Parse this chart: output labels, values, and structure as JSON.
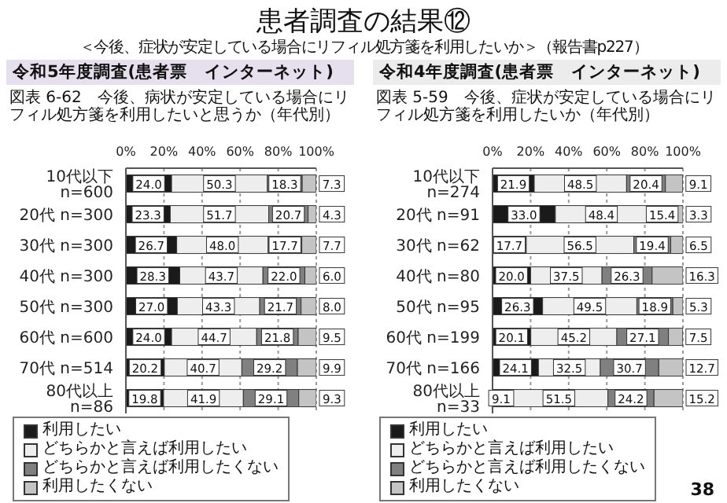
{
  "chart_data": [
    {
      "type": "bar",
      "orientation": "horizontal",
      "stacked": true,
      "title": "令和5年度調査(患者票　インターネット)",
      "subtitle": "図表 6-62　今後、病状が安定している場合にリフィル処方箋を利用したいと思うか（年代別）",
      "annotations": [
        "患者調査の結果⑫",
        "＜今後、症状が安定している場合にリフィル処方箋を利用したいか＞（報告書p227）",
        "38"
      ],
      "categories": [
        "10代以下 n=600",
        "20代 n=300",
        "30代 n=300",
        "40代 n=300",
        "50代 n=300",
        "60代 n=600",
        "70代 n=514",
        "80代以上 n=86"
      ],
      "series": [
        {
          "name": "利用したい",
          "color": "#1a1a1a",
          "values": [
            24.0,
            23.3,
            26.7,
            28.3,
            27.0,
            24.0,
            20.2,
            19.8
          ],
          "value_labels": [
            "24.0",
            "23.3",
            "26.7",
            "28.3",
            "27.0",
            "24.0",
            "20.2",
            "19.8"
          ]
        },
        {
          "name": "どちらかと言えば利用したい",
          "color": "#eeeeee",
          "values": [
            50.3,
            51.7,
            48.0,
            43.7,
            43.3,
            44.7,
            40.7,
            41.9
          ],
          "value_labels": [
            "50.3",
            "51.7",
            "48.0",
            "43.7",
            "43.3",
            "44.7",
            "40.7",
            "41.9"
          ]
        },
        {
          "name": "どちらかと言えば利用したくない",
          "color": "#808080",
          "values": [
            18.3,
            20.7,
            17.7,
            22.0,
            21.7,
            21.8,
            29.2,
            29.1
          ],
          "value_labels": [
            "18.3",
            "20.7",
            "17.7",
            "22.0",
            "21.7",
            "21.8",
            "29.2",
            "29.1"
          ]
        },
        {
          "name": "利用したくない",
          "color": "#c4c4c4",
          "values": [
            7.3,
            4.3,
            7.7,
            6.0,
            8.0,
            9.5,
            9.9,
            9.3
          ],
          "value_labels": [
            "7.3",
            "4.3",
            "7.7",
            "6.0",
            "8.0",
            "9.5",
            "9.9",
            "9.3"
          ]
        }
      ],
      "xlim": [
        0,
        100
      ],
      "xticks": [
        {
          "value": 0,
          "label": "0%"
        },
        {
          "value": 20,
          "label": "20%"
        },
        {
          "value": 40,
          "label": "40%"
        },
        {
          "value": 60,
          "label": "60%"
        },
        {
          "value": 80,
          "label": "80%"
        },
        {
          "value": 100,
          "label": "100%"
        }
      ],
      "grid": "x",
      "legend": "bottom"
    },
    {
      "type": "bar",
      "orientation": "horizontal",
      "stacked": true,
      "title": "令和4年度調査(患者票　インターネット)",
      "subtitle": "図表 5-59　今後、症状が安定している場合にリフィル処方箋を利用したいか（年代別）",
      "categories": [
        "10代以下 n=274",
        "20代 n=91",
        "30代 n=62",
        "40代 n=80",
        "50代 n=95",
        "60代 n=199",
        "70代 n=166",
        "80代以上 n=33"
      ],
      "series": [
        {
          "name": "利用したい",
          "color": "#1a1a1a",
          "values": [
            21.9,
            33.0,
            17.7,
            20.0,
            26.3,
            20.1,
            24.1,
            9.1
          ],
          "value_labels": [
            "21.9",
            "33.0",
            "17.7",
            "20.0",
            "26.3",
            "20.1",
            "24.1",
            "9.1"
          ]
        },
        {
          "name": "どちらかと言えば利用したい",
          "color": "#eeeeee",
          "values": [
            48.5,
            48.4,
            56.5,
            37.5,
            49.5,
            45.2,
            32.5,
            51.5
          ],
          "value_labels": [
            "48.5",
            "48.4",
            "56.5",
            "37.5",
            "49.5",
            "45.2",
            "32.5",
            "51.5"
          ]
        },
        {
          "name": "どちらかと言えば利用したくない",
          "color": "#808080",
          "values": [
            20.4,
            15.4,
            19.4,
            26.3,
            18.9,
            27.1,
            30.7,
            24.2
          ],
          "value_labels": [
            "20.4",
            "15.4",
            "19.4",
            "26.3",
            "18.9",
            "27.1",
            "30.7",
            "24.2"
          ]
        },
        {
          "name": "利用したくない",
          "color": "#c4c4c4",
          "values": [
            9.1,
            3.3,
            6.5,
            16.3,
            5.3,
            7.5,
            12.7,
            15.2
          ],
          "value_labels": [
            "9.1",
            "3.3",
            "6.5",
            "16.3",
            "5.3",
            "7.5",
            "12.7",
            "15.2"
          ]
        }
      ],
      "xlim": [
        0,
        100
      ],
      "xticks": [
        {
          "value": 0,
          "label": "0%"
        },
        {
          "value": 20,
          "label": "20%"
        },
        {
          "value": 40,
          "label": "40%"
        },
        {
          "value": 60,
          "label": "60%"
        },
        {
          "value": 80,
          "label": "80%"
        },
        {
          "value": 100,
          "label": "100%"
        }
      ],
      "grid": "x",
      "legend": "bottom"
    }
  ]
}
